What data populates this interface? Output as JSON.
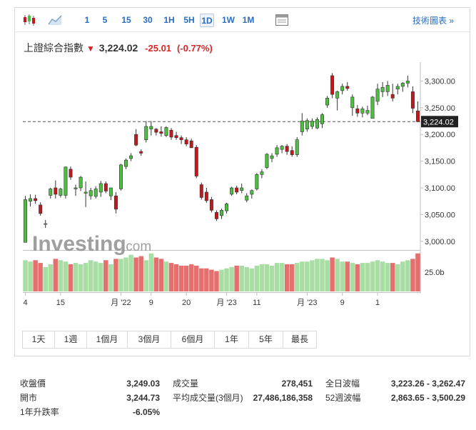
{
  "toolbar": {
    "timeframes": [
      "1",
      "5",
      "15",
      "30",
      "1H",
      "5H",
      "1D",
      "1W",
      "1M"
    ],
    "active_timeframe": "1D",
    "advanced_chart_label": "技術圖表 »"
  },
  "quote": {
    "name": "上證綜合指數",
    "arrow": "▼",
    "price": "3,224.02",
    "change": "-25.01",
    "change_pct": "(-0.77%)"
  },
  "watermark": {
    "brand": "Investing",
    "suffix": ".com"
  },
  "colors": {
    "up": "#4cbf3f",
    "down": "#c4171c",
    "vol_up": "#a8dea4",
    "vol_down": "#e56f6f",
    "link": "#2a6dbf"
  },
  "chart_data": {
    "type": "candlestick",
    "title": "上證綜合指數",
    "y_axis": {
      "ticks": [
        3000,
        3050,
        3100,
        3150,
        3200,
        3250,
        3300
      ],
      "tick_labels": [
        "3,000.00",
        "3,050.00",
        "3,100.00",
        "3,150.00",
        "3,200.00",
        "3,250.00",
        "3,300.00"
      ],
      "range": [
        2985,
        3330
      ]
    },
    "last_price": 3224.02,
    "last_price_label": "3,224.02",
    "volume_axis_label": "25.0b",
    "volume_max": 30,
    "x_tick_labels": [
      "4",
      "15",
      "月 '22",
      "9",
      "20",
      "月 '23",
      "11",
      "月 '23",
      "9",
      "1"
    ],
    "x_tick_index": [
      0,
      7,
      19,
      25,
      32,
      40,
      46,
      56,
      63,
      70
    ],
    "candles": [
      {
        "o": 2998,
        "h": 3085,
        "l": 2998,
        "c": 3078
      },
      {
        "o": 3075,
        "h": 3088,
        "l": 3065,
        "c": 3080
      },
      {
        "o": 3080,
        "h": 3087,
        "l": 3070,
        "c": 3076
      },
      {
        "o": 3068,
        "h": 3073,
        "l": 3048,
        "c": 3052
      },
      {
        "o": 3032,
        "h": 3040,
        "l": 3025,
        "c": 3033
      },
      {
        "o": 3086,
        "h": 3100,
        "l": 3080,
        "c": 3098
      },
      {
        "o": 3100,
        "h": 3114,
        "l": 3080,
        "c": 3088
      },
      {
        "o": 3086,
        "h": 3100,
        "l": 3082,
        "c": 3098
      },
      {
        "o": 3086,
        "h": 3140,
        "l": 3080,
        "c": 3139
      },
      {
        "o": 3135,
        "h": 3140,
        "l": 3115,
        "c": 3120
      },
      {
        "o": 3098,
        "h": 3106,
        "l": 3085,
        "c": 3100
      },
      {
        "o": 3100,
        "h": 3122,
        "l": 3094,
        "c": 3120
      },
      {
        "o": 3090,
        "h": 3112,
        "l": 3064,
        "c": 3092
      },
      {
        "o": 3085,
        "h": 3100,
        "l": 3078,
        "c": 3095
      },
      {
        "o": 3084,
        "h": 3103,
        "l": 3080,
        "c": 3098
      },
      {
        "o": 3092,
        "h": 3113,
        "l": 3083,
        "c": 3108
      },
      {
        "o": 3108,
        "h": 3112,
        "l": 3090,
        "c": 3094
      },
      {
        "o": 3085,
        "h": 3100,
        "l": 3077,
        "c": 3100
      },
      {
        "o": 3085,
        "h": 3092,
        "l": 3052,
        "c": 3060
      },
      {
        "o": 3098,
        "h": 3145,
        "l": 3095,
        "c": 3143
      },
      {
        "o": 3140,
        "h": 3155,
        "l": 3135,
        "c": 3152
      },
      {
        "o": 3155,
        "h": 3165,
        "l": 3150,
        "c": 3160
      },
      {
        "o": 3200,
        "h": 3210,
        "l": 3178,
        "c": 3180
      },
      {
        "o": 3168,
        "h": 3172,
        "l": 3160,
        "c": 3165
      },
      {
        "o": 3190,
        "h": 3225,
        "l": 3185,
        "c": 3215
      },
      {
        "o": 3210,
        "h": 3225,
        "l": 3198,
        "c": 3215
      },
      {
        "o": 3210,
        "h": 3212,
        "l": 3198,
        "c": 3204
      },
      {
        "o": 3205,
        "h": 3215,
        "l": 3196,
        "c": 3202
      },
      {
        "o": 3198,
        "h": 3215,
        "l": 3195,
        "c": 3213
      },
      {
        "o": 3208,
        "h": 3212,
        "l": 3190,
        "c": 3195
      },
      {
        "o": 3198,
        "h": 3205,
        "l": 3190,
        "c": 3194
      },
      {
        "o": 3194,
        "h": 3198,
        "l": 3182,
        "c": 3190
      },
      {
        "o": 3190,
        "h": 3195,
        "l": 3178,
        "c": 3182
      },
      {
        "o": 3188,
        "h": 3192,
        "l": 3176,
        "c": 3175
      },
      {
        "o": 3176,
        "h": 3180,
        "l": 3118,
        "c": 3122
      },
      {
        "o": 3106,
        "h": 3110,
        "l": 3078,
        "c": 3082
      },
      {
        "o": 3092,
        "h": 3100,
        "l": 3072,
        "c": 3076
      },
      {
        "o": 3078,
        "h": 3083,
        "l": 3054,
        "c": 3058
      },
      {
        "o": 3054,
        "h": 3058,
        "l": 3038,
        "c": 3042
      },
      {
        "o": 3048,
        "h": 3061,
        "l": 3042,
        "c": 3058
      },
      {
        "o": 3057,
        "h": 3072,
        "l": 3052,
        "c": 3070
      },
      {
        "o": 3088,
        "h": 3102,
        "l": 3085,
        "c": 3100
      },
      {
        "o": 3100,
        "h": 3104,
        "l": 3088,
        "c": 3092
      },
      {
        "o": 3095,
        "h": 3108,
        "l": 3090,
        "c": 3100
      },
      {
        "o": 3077,
        "h": 3090,
        "l": 3073,
        "c": 3085
      },
      {
        "o": 3088,
        "h": 3097,
        "l": 3080,
        "c": 3095
      },
      {
        "o": 3098,
        "h": 3128,
        "l": 3095,
        "c": 3125
      },
      {
        "o": 3125,
        "h": 3135,
        "l": 3118,
        "c": 3130
      },
      {
        "o": 3138,
        "h": 3165,
        "l": 3135,
        "c": 3163
      },
      {
        "o": 3155,
        "h": 3165,
        "l": 3148,
        "c": 3160
      },
      {
        "o": 3163,
        "h": 3180,
        "l": 3158,
        "c": 3175
      },
      {
        "o": 3172,
        "h": 3180,
        "l": 3165,
        "c": 3178
      },
      {
        "o": 3178,
        "h": 3182,
        "l": 3162,
        "c": 3168
      },
      {
        "o": 3170,
        "h": 3178,
        "l": 3158,
        "c": 3162
      },
      {
        "o": 3162,
        "h": 3195,
        "l": 3158,
        "c": 3190
      },
      {
        "o": 3205,
        "h": 3240,
        "l": 3198,
        "c": 3225
      },
      {
        "o": 3210,
        "h": 3230,
        "l": 3205,
        "c": 3226
      },
      {
        "o": 3215,
        "h": 3230,
        "l": 3210,
        "c": 3225
      },
      {
        "o": 3212,
        "h": 3232,
        "l": 3210,
        "c": 3228
      },
      {
        "o": 3220,
        "h": 3240,
        "l": 3212,
        "c": 3237
      },
      {
        "o": 3255,
        "h": 3272,
        "l": 3250,
        "c": 3268
      },
      {
        "o": 3310,
        "h": 3315,
        "l": 3268,
        "c": 3275
      },
      {
        "o": 3268,
        "h": 3282,
        "l": 3245,
        "c": 3280
      },
      {
        "o": 3282,
        "h": 3295,
        "l": 3275,
        "c": 3290
      },
      {
        "o": 3290,
        "h": 3298,
        "l": 3282,
        "c": 3286
      },
      {
        "o": 3250,
        "h": 3275,
        "l": 3235,
        "c": 3270
      },
      {
        "o": 3248,
        "h": 3255,
        "l": 3233,
        "c": 3240
      },
      {
        "o": 3240,
        "h": 3252,
        "l": 3232,
        "c": 3248
      },
      {
        "o": 3240,
        "h": 3254,
        "l": 3236,
        "c": 3245
      },
      {
        "o": 3230,
        "h": 3272,
        "l": 3230,
        "c": 3270
      },
      {
        "o": 3262,
        "h": 3295,
        "l": 3255,
        "c": 3285
      },
      {
        "o": 3280,
        "h": 3298,
        "l": 3270,
        "c": 3288
      },
      {
        "o": 3280,
        "h": 3300,
        "l": 3272,
        "c": 3292
      },
      {
        "o": 3275,
        "h": 3295,
        "l": 3262,
        "c": 3268
      },
      {
        "o": 3285,
        "h": 3295,
        "l": 3275,
        "c": 3290
      },
      {
        "o": 3290,
        "h": 3298,
        "l": 3280,
        "c": 3296
      },
      {
        "o": 3296,
        "h": 3310,
        "l": 3288,
        "c": 3300
      },
      {
        "o": 3280,
        "h": 3290,
        "l": 3240,
        "c": 3249
      },
      {
        "o": 3244,
        "h": 3262,
        "l": 3223,
        "c": 3224
      }
    ],
    "volumes": [
      23,
      22,
      23,
      21,
      18,
      20,
      24,
      23,
      22,
      20,
      21,
      20,
      21,
      23,
      22,
      21,
      23,
      20,
      24,
      24,
      25,
      27,
      25,
      26,
      23,
      28,
      25,
      24,
      22,
      21,
      20,
      19,
      19,
      20,
      19,
      17,
      17,
      16,
      15,
      16,
      17,
      18,
      19,
      19,
      18,
      17,
      19,
      20,
      20,
      19,
      21,
      21,
      20,
      20,
      21,
      22,
      22,
      23,
      24,
      24,
      23,
      25,
      24,
      22,
      22,
      21,
      20,
      21,
      21,
      22,
      23,
      22,
      21,
      21,
      20,
      22,
      23,
      24,
      28
    ]
  },
  "range_buttons": [
    "1天",
    "1週",
    "1個月",
    "3個月",
    "6個月",
    "1年",
    "5年",
    "最長"
  ],
  "stats": {
    "prev_close_label": "收盤價",
    "prev_close_value": "3,249.03",
    "open_label": "開市",
    "open_value": "3,244.73",
    "one_year_label": "1年升跌率",
    "one_year_value": "-6.05%",
    "volume_label": "成交量",
    "volume_value": "278,451",
    "avg_volume_label": "平均成交量(3個月)",
    "avg_volume_value": "27,486,186,358",
    "day_range_label": "全日波幅",
    "day_range_value": "3,223.26 - 3,262.47",
    "week52_label": "52週波幅",
    "week52_value": "2,863.65 - 3,500.29"
  }
}
